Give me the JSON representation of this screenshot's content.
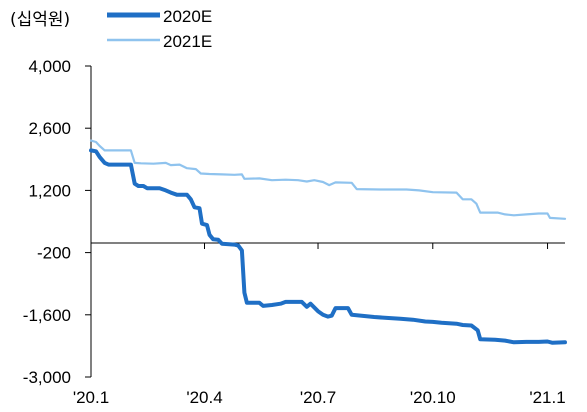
{
  "unit_label": "(십억원)",
  "colors": {
    "series_2020E": "#1f6fc5",
    "series_2021E": "#8fc3ee",
    "axis": "#000000"
  },
  "chart_data": {
    "type": "line",
    "xlabel": "",
    "ylabel": "",
    "ylim": [
      -3000,
      4000
    ],
    "yticks": [
      4000,
      2600,
      1200,
      -200,
      -1600,
      -3000
    ],
    "ytick_labels": [
      "4,000",
      "2,600",
      "1,200",
      "-200",
      "-1,600",
      "-3,000"
    ],
    "xlim": [
      "2020-01-01",
      "2021-01-15"
    ],
    "xticks": [
      "2020-01-01",
      "2020-04-01",
      "2020-07-01",
      "2020-10-01",
      "2021-01-01"
    ],
    "xtick_labels": [
      "'20.1",
      "'20.4",
      "'20.7",
      "'20.10",
      "'21.1"
    ],
    "legend": "top",
    "grid": false,
    "series": [
      {
        "name": "2020E",
        "points": [
          [
            "2020-01-01",
            2100
          ],
          [
            "2020-01-05",
            2080
          ],
          [
            "2020-01-08",
            1950
          ],
          [
            "2020-01-12",
            1820
          ],
          [
            "2020-01-15",
            1780
          ],
          [
            "2020-01-28",
            1780
          ],
          [
            "2020-02-02",
            1780
          ],
          [
            "2020-02-05",
            1350
          ],
          [
            "2020-02-08",
            1300
          ],
          [
            "2020-02-12",
            1300
          ],
          [
            "2020-02-15",
            1250
          ],
          [
            "2020-02-25",
            1250
          ],
          [
            "2020-03-01",
            1200
          ],
          [
            "2020-03-05",
            1150
          ],
          [
            "2020-03-10",
            1100
          ],
          [
            "2020-03-18",
            1100
          ],
          [
            "2020-03-21",
            1000
          ],
          [
            "2020-03-24",
            820
          ],
          [
            "2020-03-28",
            800
          ],
          [
            "2020-03-30",
            450
          ],
          [
            "2020-04-03",
            420
          ],
          [
            "2020-04-05",
            200
          ],
          [
            "2020-04-08",
            100
          ],
          [
            "2020-04-12",
            90
          ],
          [
            "2020-04-15",
            0
          ],
          [
            "2020-04-25",
            -20
          ],
          [
            "2020-04-28",
            -40
          ],
          [
            "2020-05-01",
            -150
          ],
          [
            "2020-05-03",
            -1100
          ],
          [
            "2020-05-05",
            -1330
          ],
          [
            "2020-05-15",
            -1330
          ],
          [
            "2020-05-18",
            -1400
          ],
          [
            "2020-05-25",
            -1380
          ],
          [
            "2020-06-01",
            -1350
          ],
          [
            "2020-06-05",
            -1310
          ],
          [
            "2020-06-18",
            -1310
          ],
          [
            "2020-06-22",
            -1420
          ],
          [
            "2020-06-25",
            -1350
          ],
          [
            "2020-07-01",
            -1520
          ],
          [
            "2020-07-05",
            -1600
          ],
          [
            "2020-07-09",
            -1640
          ],
          [
            "2020-07-12",
            -1620
          ],
          [
            "2020-07-15",
            -1450
          ],
          [
            "2020-07-25",
            -1450
          ],
          [
            "2020-07-28",
            -1600
          ],
          [
            "2020-08-05",
            -1620
          ],
          [
            "2020-08-15",
            -1650
          ],
          [
            "2020-08-25",
            -1670
          ],
          [
            "2020-09-05",
            -1690
          ],
          [
            "2020-09-15",
            -1710
          ],
          [
            "2020-09-25",
            -1750
          ],
          [
            "2020-10-01",
            -1760
          ],
          [
            "2020-10-08",
            -1780
          ],
          [
            "2020-10-20",
            -1800
          ],
          [
            "2020-10-25",
            -1830
          ],
          [
            "2020-11-01",
            -1840
          ],
          [
            "2020-11-06",
            -1950
          ],
          [
            "2020-11-08",
            -2150
          ],
          [
            "2020-11-20",
            -2160
          ],
          [
            "2020-11-28",
            -2180
          ],
          [
            "2020-12-05",
            -2220
          ],
          [
            "2020-12-15",
            -2210
          ],
          [
            "2020-12-25",
            -2210
          ],
          [
            "2021-01-01",
            -2200
          ],
          [
            "2021-01-05",
            -2230
          ],
          [
            "2021-01-15",
            -2220
          ]
        ]
      },
      {
        "name": "2021E",
        "points": [
          [
            "2020-01-01",
            2320
          ],
          [
            "2020-01-05",
            2290
          ],
          [
            "2020-01-08",
            2200
          ],
          [
            "2020-01-12",
            2100
          ],
          [
            "2020-01-28",
            2100
          ],
          [
            "2020-02-02",
            2100
          ],
          [
            "2020-02-05",
            1820
          ],
          [
            "2020-02-10",
            1810
          ],
          [
            "2020-02-20",
            1800
          ],
          [
            "2020-03-01",
            1820
          ],
          [
            "2020-03-05",
            1770
          ],
          [
            "2020-03-12",
            1780
          ],
          [
            "2020-03-18",
            1700
          ],
          [
            "2020-03-25",
            1680
          ],
          [
            "2020-03-29",
            1580
          ],
          [
            "2020-04-05",
            1570
          ],
          [
            "2020-04-15",
            1560
          ],
          [
            "2020-04-25",
            1550
          ],
          [
            "2020-05-01",
            1560
          ],
          [
            "2020-05-03",
            1460
          ],
          [
            "2020-05-15",
            1470
          ],
          [
            "2020-05-25",
            1430
          ],
          [
            "2020-06-05",
            1440
          ],
          [
            "2020-06-15",
            1430
          ],
          [
            "2020-06-22",
            1400
          ],
          [
            "2020-06-28",
            1430
          ],
          [
            "2020-07-05",
            1390
          ],
          [
            "2020-07-10",
            1320
          ],
          [
            "2020-07-15",
            1380
          ],
          [
            "2020-07-28",
            1370
          ],
          [
            "2020-08-01",
            1230
          ],
          [
            "2020-08-20",
            1220
          ],
          [
            "2020-09-10",
            1220
          ],
          [
            "2020-09-20",
            1200
          ],
          [
            "2020-10-01",
            1160
          ],
          [
            "2020-10-20",
            1150
          ],
          [
            "2020-10-25",
            1000
          ],
          [
            "2020-11-01",
            1000
          ],
          [
            "2020-11-05",
            900
          ],
          [
            "2020-11-08",
            700
          ],
          [
            "2020-11-22",
            700
          ],
          [
            "2020-11-28",
            660
          ],
          [
            "2020-12-05",
            640
          ],
          [
            "2020-12-15",
            660
          ],
          [
            "2020-12-25",
            680
          ],
          [
            "2021-01-01",
            680
          ],
          [
            "2021-01-03",
            580
          ],
          [
            "2021-01-15",
            560
          ]
        ]
      }
    ]
  }
}
